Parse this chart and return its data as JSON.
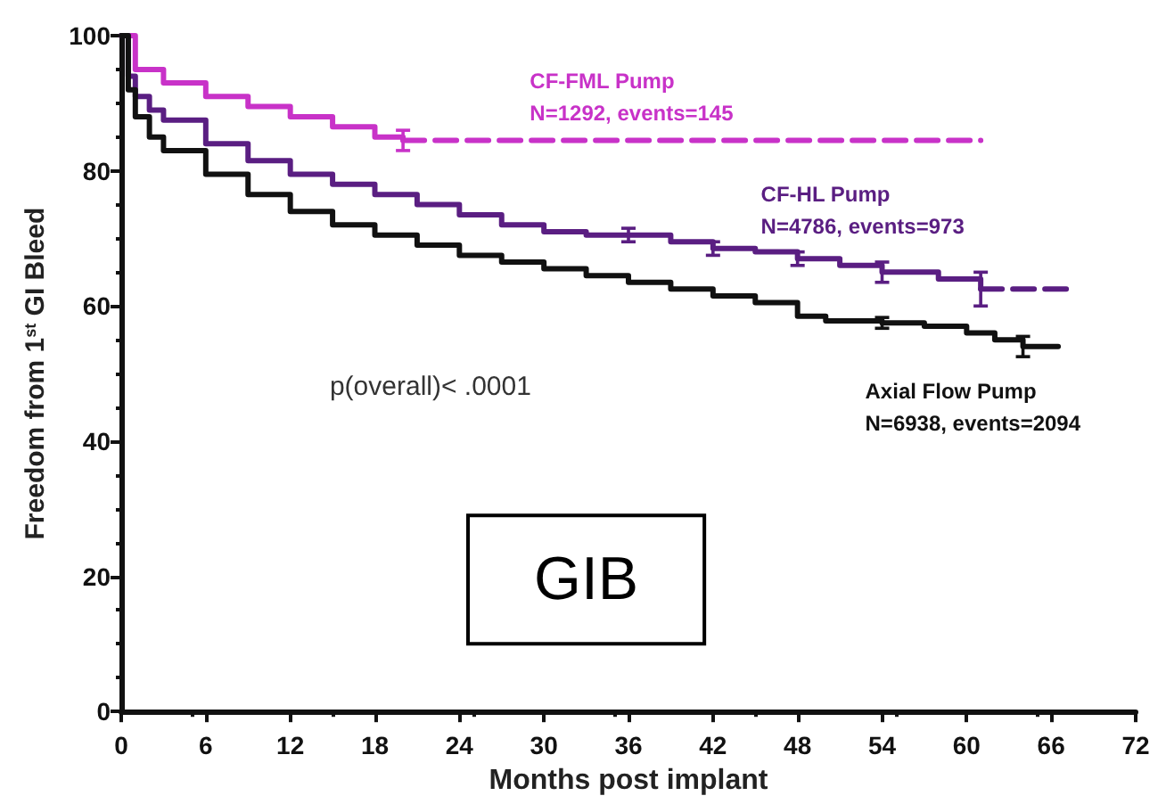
{
  "chart_data": {
    "type": "step",
    "xlabel": "Months post implant",
    "ylabel": "Freedom from 1$^{st}$ GI Bleed",
    "xlim": [
      0,
      72
    ],
    "xticks": [
      0,
      6,
      12,
      18,
      24,
      30,
      36,
      42,
      48,
      54,
      60,
      66,
      72
    ],
    "ylim": [
      0,
      100
    ],
    "yticks": [
      0,
      20,
      40,
      60,
      80,
      100
    ],
    "grid": false,
    "legend": false,
    "marker": "none",
    "line_style": "solid",
    "series": [
      {
        "name": "CF-FML Pump",
        "color": "#c832c8",
        "x": [
          0,
          1,
          3,
          6,
          9,
          12,
          15,
          18,
          20
        ],
        "values": [
          100,
          95,
          93,
          91,
          89.5,
          88,
          86.5,
          85,
          84.5
        ],
        "errors": [
          null,
          null,
          null,
          null,
          null,
          null,
          null,
          null,
          1.5
        ]
      },
      {
        "color": "#c832c8",
        "line_style": "dashed",
        "x": [
          20,
          61
        ],
        "values": [
          84.5,
          84.5
        ]
      },
      {
        "name": "CF-HL Pump",
        "color": "#5a1e82",
        "x": [
          0,
          0.5,
          1,
          2,
          3,
          6,
          9,
          12,
          15,
          18,
          21,
          24,
          27,
          30,
          33,
          36,
          39,
          42,
          45,
          48,
          51,
          54,
          58,
          61
        ],
        "values": [
          100,
          94,
          91,
          89,
          87.5,
          84,
          81.5,
          79.5,
          78,
          76.5,
          75,
          73.5,
          72,
          71,
          70.5,
          70.5,
          69.5,
          68.5,
          68,
          67,
          66,
          65,
          64,
          62.5
        ],
        "errors": [
          null,
          null,
          null,
          null,
          null,
          null,
          null,
          null,
          null,
          null,
          null,
          null,
          null,
          null,
          null,
          1,
          null,
          1,
          null,
          1,
          null,
          1.5,
          null,
          2.5
        ]
      },
      {
        "color": "#5a1e82",
        "line_style": "dashed",
        "x": [
          61,
          67.5
        ],
        "values": [
          62.5,
          62.5
        ]
      },
      {
        "name": "Axial Flow Pump",
        "color": "#111111",
        "x": [
          0,
          0.5,
          1,
          2,
          3,
          6,
          9,
          12,
          15,
          18,
          21,
          24,
          27,
          30,
          33,
          36,
          39,
          42,
          45,
          48,
          50,
          54,
          57,
          60,
          62,
          64,
          66.5
        ],
        "values": [
          100,
          92,
          88,
          85,
          83,
          79.5,
          76.5,
          74,
          72,
          70.5,
          69,
          67.5,
          66.5,
          65.5,
          64.5,
          63.5,
          62.5,
          61.5,
          60.5,
          58.5,
          57.8,
          57.5,
          57,
          56,
          55,
          54,
          54
        ],
        "errors": [
          null,
          null,
          null,
          null,
          null,
          null,
          null,
          null,
          null,
          null,
          null,
          null,
          null,
          null,
          null,
          null,
          null,
          null,
          null,
          null,
          null,
          0.8,
          null,
          null,
          null,
          1.5,
          null
        ]
      }
    ],
    "annotations": [
      "N=1292, events=145",
      "N=4786, events=973",
      "N=6938, events=2094",
      "p(overall)< .0001",
      "GIB"
    ]
  }
}
